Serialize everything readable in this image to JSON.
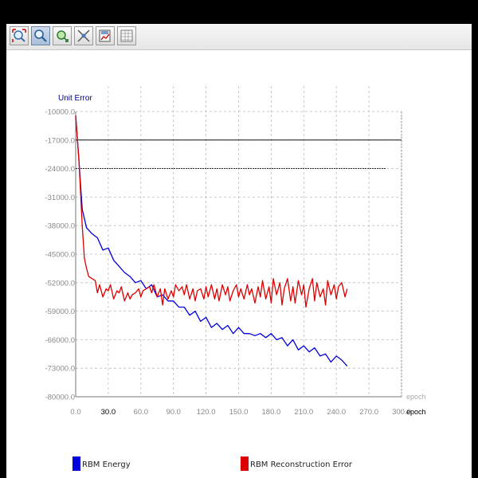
{
  "toolbar": {
    "buttons": [
      {
        "name": "zoom-fit-button",
        "icon": "zoom-fit-icon",
        "active": false
      },
      {
        "name": "zoom-button",
        "icon": "magnifier-icon",
        "active": true
      },
      {
        "name": "pan-button",
        "icon": "pan-arrow-icon",
        "active": false
      },
      {
        "name": "cursor-tools-button",
        "icon": "crosshair-icon",
        "active": false
      },
      {
        "name": "export-button",
        "icon": "save-chart-icon",
        "active": false
      },
      {
        "name": "data-table-button",
        "icon": "table-icon",
        "active": false
      }
    ]
  },
  "chart_data": {
    "type": "line",
    "ylabel": "Unit Error",
    "xlabel": "epoch",
    "xlim": [
      0,
      300
    ],
    "ylim": [
      -80000,
      -10000
    ],
    "x_ticks": [
      "0.0",
      "30.0",
      "60.0",
      "90.0",
      "120.0",
      "150.0",
      "180.0",
      "210.0",
      "240.0",
      "270.0",
      "300.0"
    ],
    "y_ticks": [
      "-10000.0",
      "-17000.0",
      "-24000.0",
      "-31000.0",
      "-38000.0",
      "-45000.0",
      "-52000.0",
      "-59000.0",
      "-66000.0",
      "-73000.0",
      "-80000.0"
    ],
    "reference_lines": [
      -17000,
      -24000
    ],
    "grid": true,
    "legend_position": "bottom",
    "series": [
      {
        "name": "RBM Energy",
        "color": "#0000dd",
        "x": [
          0,
          3,
          6,
          10,
          15,
          20,
          25,
          30,
          35,
          40,
          45,
          50,
          55,
          60,
          65,
          70,
          75,
          80,
          85,
          90,
          95,
          100,
          105,
          110,
          115,
          120,
          125,
          130,
          135,
          140,
          145,
          150,
          155,
          160,
          165,
          170,
          175,
          180,
          185,
          190,
          195,
          200,
          205,
          210,
          215,
          220,
          225,
          230,
          235,
          240,
          245,
          250
        ],
        "y": [
          -11000,
          -22000,
          -34000,
          -38500,
          -40000,
          -41000,
          -44000,
          -43500,
          -46500,
          -48000,
          -49500,
          -50500,
          -52000,
          -51500,
          -53500,
          -52500,
          -55500,
          -55000,
          -56500,
          -56500,
          -58000,
          -58000,
          -60000,
          -59000,
          -61500,
          -60500,
          -63000,
          -62000,
          -63500,
          -62500,
          -64500,
          -63000,
          -64500,
          -64500,
          -65000,
          -64500,
          -65500,
          -64500,
          -66000,
          -65500,
          -67500,
          -66000,
          -68500,
          -67500,
          -69000,
          -68000,
          -70000,
          -69500,
          -71500,
          -70000,
          -71000,
          -72500
        ]
      },
      {
        "name": "RBM Reconstruction Error",
        "color": "#dd0000",
        "x": [
          0,
          3,
          6,
          8,
          10,
          12,
          15,
          18,
          20,
          22,
          25,
          28,
          30,
          32,
          35,
          38,
          40,
          42,
          45,
          48,
          50,
          52,
          55,
          58,
          60,
          62,
          65,
          68,
          70,
          72,
          75,
          78,
          80,
          82,
          85,
          88,
          90,
          92,
          95,
          98,
          100,
          102,
          105,
          108,
          110,
          112,
          115,
          118,
          120,
          122,
          125,
          128,
          130,
          132,
          135,
          138,
          140,
          142,
          145,
          148,
          150,
          152,
          155,
          158,
          160,
          162,
          165,
          168,
          170,
          172,
          175,
          178,
          180,
          182,
          185,
          188,
          190,
          192,
          195,
          198,
          200,
          202,
          205,
          208,
          210,
          212,
          215,
          218,
          220,
          222,
          225,
          228,
          230,
          232,
          235,
          238,
          240,
          242,
          245,
          248,
          250
        ],
        "y": [
          -11000,
          -22000,
          -38000,
          -46000,
          -48500,
          -50500,
          -51000,
          -51500,
          -54500,
          -52500,
          -55500,
          -53500,
          -54000,
          -52500,
          -56000,
          -54000,
          -54500,
          -53000,
          -56500,
          -54500,
          -56000,
          -55000,
          -54500,
          -53500,
          -55500,
          -54000,
          -53500,
          -53000,
          -54500,
          -52500,
          -55500,
          -53500,
          -57500,
          -53500,
          -56000,
          -54000,
          -55500,
          -52500,
          -54000,
          -53000,
          -55000,
          -52500,
          -56000,
          -53500,
          -56500,
          -54000,
          -53500,
          -56000,
          -53000,
          -55500,
          -52500,
          -56000,
          -53500,
          -56500,
          -52500,
          -55000,
          -53000,
          -56500,
          -54000,
          -52500,
          -55500,
          -53500,
          -56000,
          -52500,
          -55000,
          -53500,
          -57000,
          -53000,
          -55500,
          -51500,
          -56000,
          -53000,
          -57000,
          -51000,
          -55000,
          -52000,
          -57500,
          -53500,
          -51000,
          -56500,
          -53000,
          -57000,
          -51500,
          -55000,
          -52500,
          -58000,
          -53500,
          -51000,
          -56500,
          -52000,
          -55500,
          -53500,
          -57500,
          -51500,
          -55000,
          -52500,
          -56000,
          -53000,
          -52000,
          -55500,
          -53500
        ]
      }
    ]
  }
}
